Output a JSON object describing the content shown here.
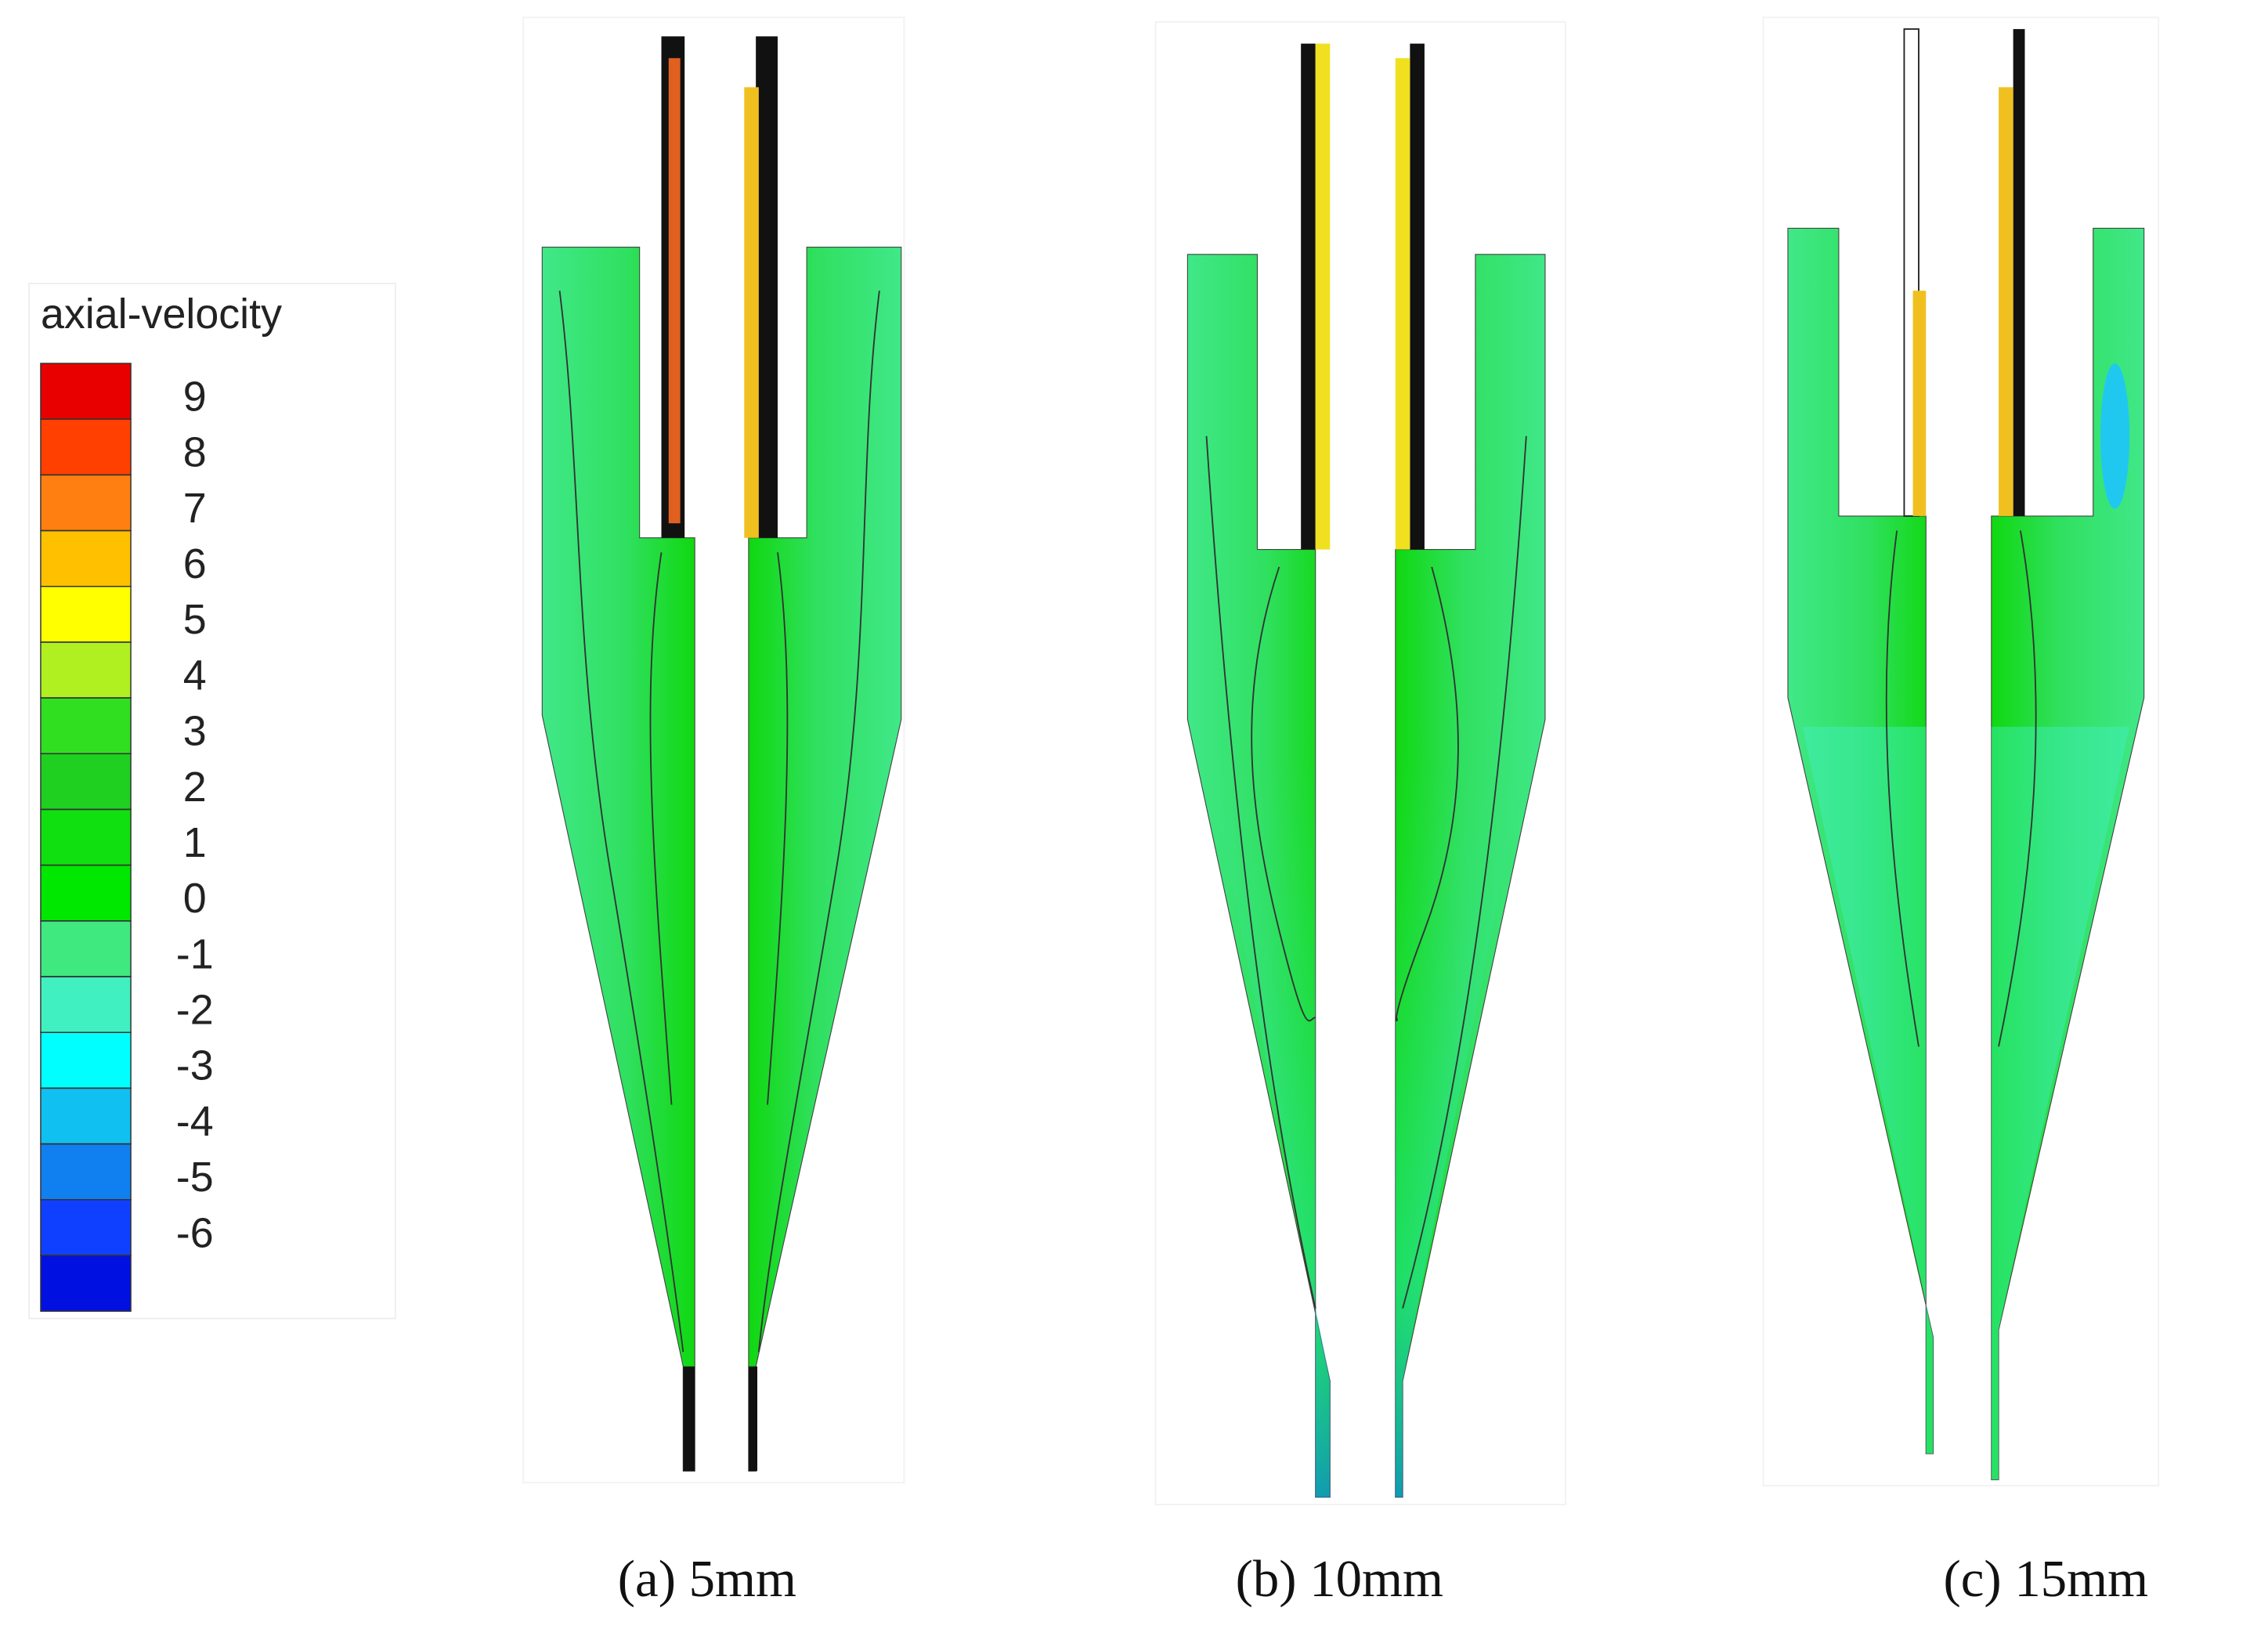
{
  "legend": {
    "title": "axial-velocity",
    "levels": [
      9,
      8,
      7,
      6,
      5,
      4,
      3,
      2,
      1,
      0,
      -1,
      -2,
      -3,
      -4,
      -5,
      -6
    ],
    "colors": [
      "#e80000",
      "#ff4000",
      "#ff8010",
      "#ffc000",
      "#ffff00",
      "#b0f020",
      "#30e020",
      "#20d020",
      "#10e010",
      "#00e800",
      "#40e880",
      "#40f0c0",
      "#00ffff",
      "#10c0f0",
      "#1080f0",
      "#1040ff",
      "#0010e0"
    ]
  },
  "panels": [
    {
      "caption": "(a)  5mm"
    },
    {
      "caption": "(b)  10mm"
    },
    {
      "caption": "(c)  15mm"
    }
  ]
}
